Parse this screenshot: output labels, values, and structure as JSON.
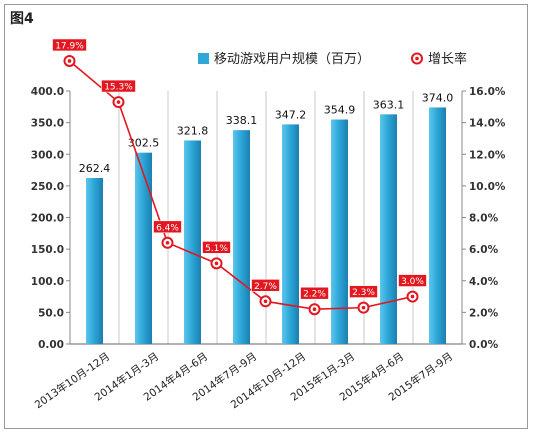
{
  "figure_label": "图4",
  "chart_data": {
    "type": "bar",
    "categories": [
      "2013年10月-12月",
      "2014年1月-3月",
      "2014年4月-6月",
      "2014年7月-9月",
      "2014年10月-12月",
      "2015年1月-3月",
      "2015年4月-6月",
      "2015年7月-9月"
    ],
    "series": [
      {
        "name": "移动游戏用户规模（百万）",
        "type": "bar",
        "axis": "left",
        "values": [
          262.4,
          302.5,
          321.8,
          338.1,
          347.2,
          354.9,
          363.1,
          374.0
        ],
        "labels": [
          "262.4",
          "302.5",
          "321.8",
          "338.1",
          "347.2",
          "354.9",
          "363.1",
          "374.0"
        ],
        "color": "#2ea8d8"
      },
      {
        "name": "增长率",
        "type": "line",
        "axis": "right",
        "values": [
          17.9,
          15.3,
          6.4,
          5.1,
          2.7,
          2.2,
          2.3,
          3.0
        ],
        "labels": [
          "17.9%",
          "15.3%",
          "6.4%",
          "5.1%",
          "2.7%",
          "2.2%",
          "2.3%",
          "3.0%"
        ],
        "color": "#e3171f"
      }
    ],
    "ylim_left": [
      0,
      400
    ],
    "yticks_left": [
      "0.00",
      "50.0",
      "100.0",
      "150.0",
      "200.0",
      "250.0",
      "300.0",
      "350.0",
      "400.0"
    ],
    "ylim_right": [
      0,
      16
    ],
    "yticks_right": [
      "0.0%",
      "2.0%",
      "4.0%",
      "6.0%",
      "8.0%",
      "10.0%",
      "12.0%",
      "14.0%",
      "16.0%"
    ],
    "grid": "vertical",
    "legend_position": "top-right"
  }
}
